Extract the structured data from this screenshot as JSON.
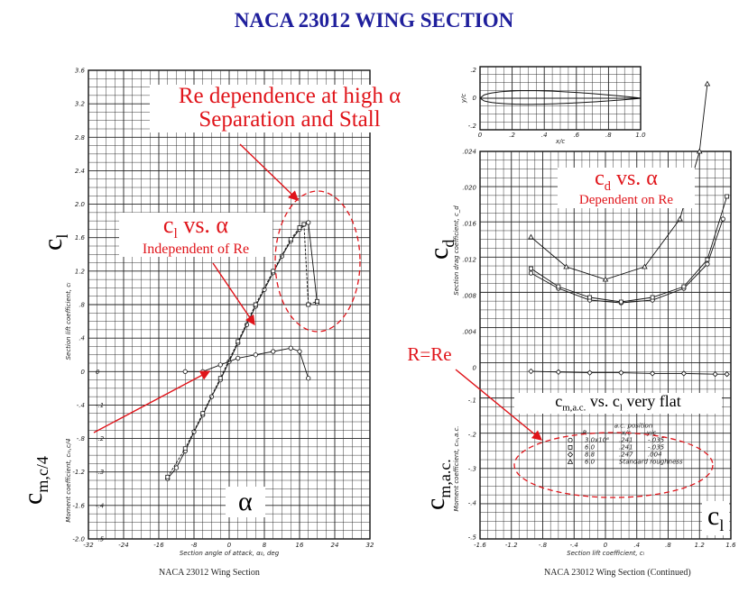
{
  "slide": {
    "title": "NACA 23012 WING SECTION"
  },
  "colors": {
    "title": "#1f1f9c",
    "annotation": "#e0141a",
    "grid": "#222222"
  },
  "annotations": {
    "re_dependence_line1": "Re dependence at high α",
    "re_dependence_line2": "Separation and Stall",
    "cl_vs_alpha_main": "c",
    "cl_vs_alpha_sub": "l",
    "cl_vs_alpha_rest": " vs. α",
    "cl_vs_alpha_note": "Independent of Re",
    "cd_vs_alpha_main": "c",
    "cd_vs_alpha_sub": "d",
    "cd_vs_alpha_rest": " vs. α",
    "cd_vs_alpha_note": "Dependent on Re",
    "r_equals_re": "R=Re",
    "cm_ac_main": "c",
    "cm_ac_sub": "m,a.c.",
    "cm_ac_rest": " vs. c",
    "cm_ac_sub2": "l",
    "cm_ac_tail": " very flat"
  },
  "big_labels": {
    "cl_main": "c",
    "cl_sub": "l",
    "cm_c4_main": "c",
    "cm_c4_sub": "m,c/4",
    "alpha": "α",
    "cd_main": "c",
    "cd_sub": "d",
    "cm_ac_main": "c",
    "cm_ac_sub": "m,a.c.",
    "cl_right_main": "c",
    "cl_right_sub": "l"
  },
  "chart_data": [
    {
      "type": "line",
      "caption": "NACA 23012 Wing Section",
      "xlabel": "Section angle of attack, α₀, deg",
      "ylabel_top": "Section lift coefficient, cₗ",
      "ylabel_bottom": "Moment coefficient, cₘ,c/4",
      "xlim": [
        -32,
        32
      ],
      "ylim": [
        -2.0,
        3.6
      ],
      "x_ticks": [
        "-32",
        "-24",
        "-16",
        "-8",
        "0",
        "8",
        "16",
        "24",
        "32"
      ],
      "y_ticks": [
        "-2.0",
        "-1.6",
        "-1.2",
        "-.8",
        "-.4",
        "0",
        ".4",
        ".8",
        "1.2",
        "1.6",
        "2.0",
        "2.4",
        "2.8",
        "3.2",
        "3.6"
      ],
      "moment_ticks": [
        "-.5",
        "-.4",
        "-.3",
        "-.2",
        "-.1",
        "0"
      ],
      "series": [
        {
          "marker": "circle",
          "x": [
            -14,
            -12,
            -10,
            -8,
            -6,
            -4,
            -2,
            0,
            2,
            4,
            6,
            8,
            10,
            12,
            14,
            16,
            18,
            20
          ],
          "values": [
            -1.28,
            -1.15,
            -0.95,
            -0.72,
            -0.52,
            -0.3,
            -0.1,
            0.12,
            0.34,
            0.56,
            0.78,
            0.98,
            1.18,
            1.38,
            1.56,
            1.7,
            1.78,
            0.82
          ]
        },
        {
          "marker": "square",
          "x": [
            -14,
            -10,
            -6,
            -2,
            2,
            6,
            10,
            14,
            16,
            17,
            18,
            20
          ],
          "values": [
            -1.26,
            -0.92,
            -0.5,
            -0.08,
            0.36,
            0.8,
            1.2,
            1.58,
            1.72,
            1.76,
            0.8,
            0.84
          ]
        },
        {
          "marker": "moment",
          "x": [
            -10,
            -6,
            -2,
            2,
            6,
            10,
            14,
            16,
            18
          ],
          "values": [
            0.0,
            0.0,
            0.02,
            0.04,
            0.05,
            0.06,
            0.07,
            0.06,
            -0.02
          ]
        }
      ]
    },
    {
      "type": "line",
      "caption": "NACA 23012 Wing Section (Continued)",
      "xlabel": "Section lift coefficient, cₗ",
      "ylabel_top": "Section drag coefficient, c_d",
      "ylabel_bottom": "Moment coefficient, cₘ,a.c.",
      "airfoil_xlabel": "x/c",
      "airfoil_ylabel": "y/c",
      "airfoil_x_ticks": [
        "0",
        ".2",
        ".4",
        ".6",
        ".8",
        "1.0"
      ],
      "airfoil_y_ticks": [
        ".2",
        "0",
        "-.2"
      ],
      "xlim": [
        -1.6,
        1.6
      ],
      "x_ticks": [
        "-1.6",
        "-1.2",
        "-.8",
        "-.4",
        "0",
        ".4",
        ".8",
        "1.2",
        "1.6"
      ],
      "cd_ticks": [
        ".024",
        ".020",
        ".016",
        ".012",
        ".008",
        ".004",
        "0"
      ],
      "cm_ticks": [
        "-.1",
        "-.2",
        "-.3",
        "-.4",
        "-.5"
      ],
      "legend": {
        "header_ac": "a.c. position",
        "header_r": "R",
        "header_xc": "x/c",
        "header_yc": "y/c",
        "rows": [
          {
            "marker": "circle",
            "r": "3.0x10⁶",
            "xc": ".241",
            "yc": "-.035"
          },
          {
            "marker": "square",
            "r": "6.0",
            "xc": ".241",
            "yc": "-.035"
          },
          {
            "marker": "diamond",
            "r": "8.8",
            "xc": ".247",
            "yc": ".004"
          },
          {
            "marker": "triangle",
            "r": "6.0",
            "xc": "Standard roughness",
            "yc": ""
          }
        ]
      },
      "series": [
        {
          "marker": "circle",
          "x": [
            -0.95,
            -0.6,
            -0.2,
            0.2,
            0.6,
            1.0,
            1.3,
            1.5
          ],
          "values": [
            0.0105,
            0.0088,
            0.0075,
            0.0072,
            0.0075,
            0.0088,
            0.0115,
            0.0165
          ]
        },
        {
          "marker": "square",
          "x": [
            -0.95,
            -0.6,
            -0.2,
            0.2,
            0.6,
            1.0,
            1.3,
            1.55
          ],
          "values": [
            0.011,
            0.009,
            0.0078,
            0.0073,
            0.0078,
            0.009,
            0.012,
            0.019
          ]
        },
        {
          "marker": "triangle",
          "x": [
            -0.95,
            -0.5,
            0.0,
            0.5,
            0.95,
            1.2,
            1.3
          ],
          "values": [
            0.0145,
            0.0112,
            0.0098,
            0.0112,
            0.0165,
            0.024,
            0.0315
          ]
        },
        {
          "marker": "moment",
          "x": [
            -0.95,
            -0.6,
            -0.2,
            0.2,
            0.6,
            1.0,
            1.4,
            1.55
          ],
          "values": [
            -0.005,
            -0.006,
            -0.007,
            -0.007,
            -0.008,
            -0.008,
            -0.009,
            -0.009
          ]
        }
      ]
    }
  ]
}
